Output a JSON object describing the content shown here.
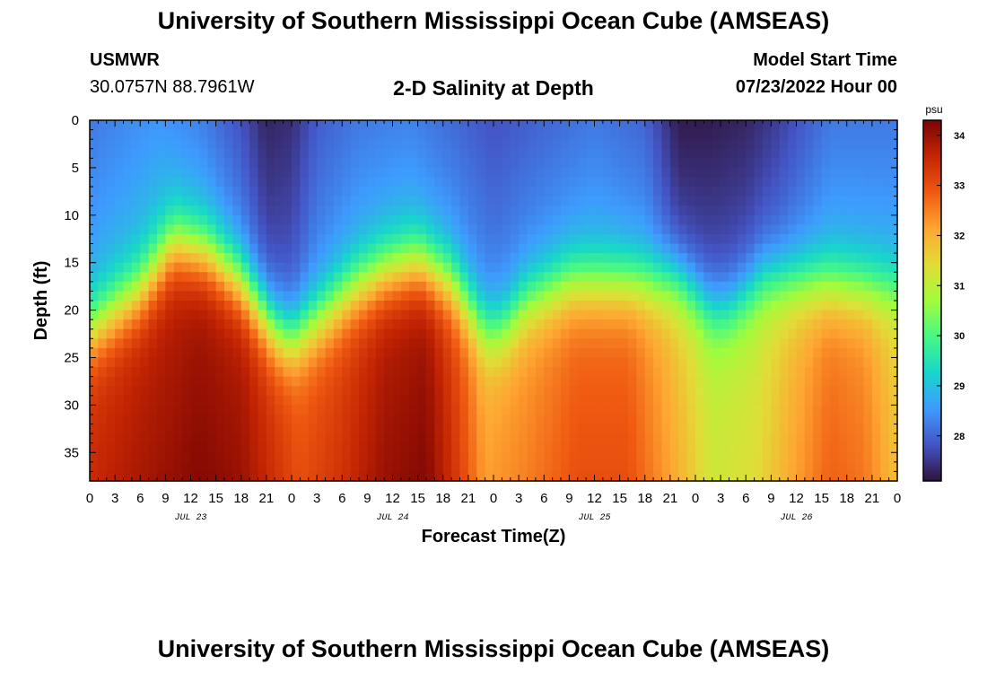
{
  "header": {
    "title": "University of Southern Mississippi Ocean Cube (AMSEAS)",
    "station": "USMWR",
    "coords": "30.0757N  88.7961W",
    "subtitle": "2-D Salinity at Depth",
    "model_start_label": "Model Start Time",
    "model_start_value": "07/23/2022 Hour 00"
  },
  "footer": {
    "title": "University of Southern Mississippi Ocean Cube (AMSEAS)"
  },
  "colors": {
    "colormap": [
      "#30123b",
      "#4454c4",
      "#3e9bfe",
      "#18d6cb",
      "#46f884",
      "#a2fc3c",
      "#e1dd37",
      "#fea632",
      "#ef5911",
      "#c42503",
      "#7a0403"
    ]
  },
  "chart_data": {
    "type": "heatmap",
    "title": "2-D Salinity at Depth",
    "xlabel": "Forecast Time(Z)",
    "ylabel": "Depth (ft)",
    "x_hours_range": [
      0,
      96
    ],
    "x_tick_labels": [
      "0",
      "3",
      "6",
      "9",
      "12",
      "15",
      "18",
      "21",
      "0",
      "3",
      "6",
      "9",
      "12",
      "15",
      "18",
      "21",
      "0",
      "3",
      "6",
      "9",
      "12",
      "15",
      "18",
      "21",
      "0",
      "3",
      "6",
      "9",
      "12",
      "15",
      "18",
      "21",
      "0"
    ],
    "date_labels": [
      {
        "hour": 12,
        "label": "JUL 23"
      },
      {
        "hour": 36,
        "label": "JUL 24"
      },
      {
        "hour": 60,
        "label": "JUL 25"
      },
      {
        "hour": 84,
        "label": "JUL 26"
      }
    ],
    "y_ticks": [
      0,
      5,
      10,
      15,
      20,
      25,
      30,
      35
    ],
    "ylim": [
      0,
      38
    ],
    "colorbar": {
      "unit": "psu",
      "range": [
        27.1,
        34.3
      ],
      "ticks": [
        28,
        29,
        30,
        31,
        32,
        33,
        34
      ]
    },
    "interface_depth_ft": [
      {
        "hour": 0,
        "depth": 22
      },
      {
        "hour": 6,
        "depth": 18
      },
      {
        "hour": 10,
        "depth": 13
      },
      {
        "hour": 14,
        "depth": 14
      },
      {
        "hour": 18,
        "depth": 17
      },
      {
        "hour": 22,
        "depth": 22
      },
      {
        "hour": 24,
        "depth": 23
      },
      {
        "hour": 27,
        "depth": 21
      },
      {
        "hour": 31,
        "depth": 18
      },
      {
        "hour": 35,
        "depth": 16
      },
      {
        "hour": 39,
        "depth": 15
      },
      {
        "hour": 43,
        "depth": 17
      },
      {
        "hour": 47,
        "depth": 22
      },
      {
        "hour": 49,
        "depth": 22
      },
      {
        "hour": 52,
        "depth": 19
      },
      {
        "hour": 57,
        "depth": 17
      },
      {
        "hour": 63,
        "depth": 17
      },
      {
        "hour": 70,
        "depth": 17
      },
      {
        "hour": 74,
        "depth": 20
      },
      {
        "hour": 76,
        "depth": 20
      },
      {
        "hour": 80,
        "depth": 17
      },
      {
        "hour": 86,
        "depth": 17
      },
      {
        "hour": 96,
        "depth": 18
      }
    ],
    "surface_salinity_psu": [
      {
        "hour": 0,
        "value": 28.2
      },
      {
        "hour": 8,
        "value": 28.5
      },
      {
        "hour": 13,
        "value": 28.3
      },
      {
        "hour": 18,
        "value": 27.8
      },
      {
        "hour": 21,
        "value": 27.3
      },
      {
        "hour": 24,
        "value": 27.4
      },
      {
        "hour": 27,
        "value": 27.9
      },
      {
        "hour": 32,
        "value": 28.2
      },
      {
        "hour": 38,
        "value": 28.3
      },
      {
        "hour": 44,
        "value": 28.0
      },
      {
        "hour": 48,
        "value": 27.8
      },
      {
        "hour": 54,
        "value": 28.0
      },
      {
        "hour": 60,
        "value": 28.2
      },
      {
        "hour": 66,
        "value": 28.0
      },
      {
        "hour": 70,
        "value": 27.2
      },
      {
        "hour": 73,
        "value": 27.2
      },
      {
        "hour": 78,
        "value": 27.3
      },
      {
        "hour": 82,
        "value": 27.6
      },
      {
        "hour": 88,
        "value": 28.2
      },
      {
        "hour": 96,
        "value": 28.2
      }
    ],
    "bottom_salinity_psu": [
      {
        "hour": 0,
        "value": 33.5
      },
      {
        "hour": 5,
        "value": 33.8
      },
      {
        "hour": 13,
        "value": 34.2
      },
      {
        "hour": 18,
        "value": 34.0
      },
      {
        "hour": 22,
        "value": 33.4
      },
      {
        "hour": 25,
        "value": 33.0
      },
      {
        "hour": 30,
        "value": 33.4
      },
      {
        "hour": 35,
        "value": 34.0
      },
      {
        "hour": 40,
        "value": 34.2
      },
      {
        "hour": 44,
        "value": 33.2
      },
      {
        "hour": 47,
        "value": 32.2
      },
      {
        "hour": 52,
        "value": 32.5
      },
      {
        "hour": 58,
        "value": 33.0
      },
      {
        "hour": 64,
        "value": 33.0
      },
      {
        "hour": 70,
        "value": 32.0
      },
      {
        "hour": 74,
        "value": 31.2
      },
      {
        "hour": 79,
        "value": 31.4
      },
      {
        "hour": 84,
        "value": 32.2
      },
      {
        "hour": 88,
        "value": 32.8
      },
      {
        "hour": 92,
        "value": 32.6
      },
      {
        "hour": 96,
        "value": 31.8
      }
    ]
  }
}
